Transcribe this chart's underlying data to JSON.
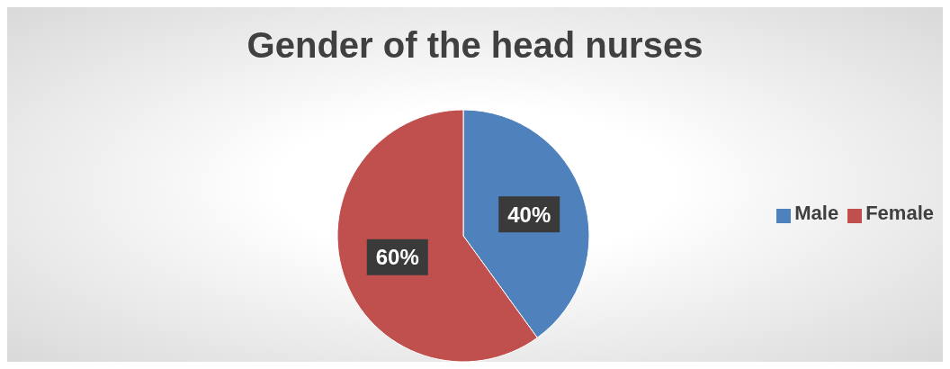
{
  "chart_data": {
    "type": "pie",
    "title": "Gender of the head nurses",
    "categories": [
      "Male",
      "Female"
    ],
    "values": [
      40,
      60
    ],
    "colors": [
      "#4f81bd",
      "#c0504d"
    ],
    "value_labels": [
      "40%",
      "60%"
    ],
    "legend": "right"
  }
}
